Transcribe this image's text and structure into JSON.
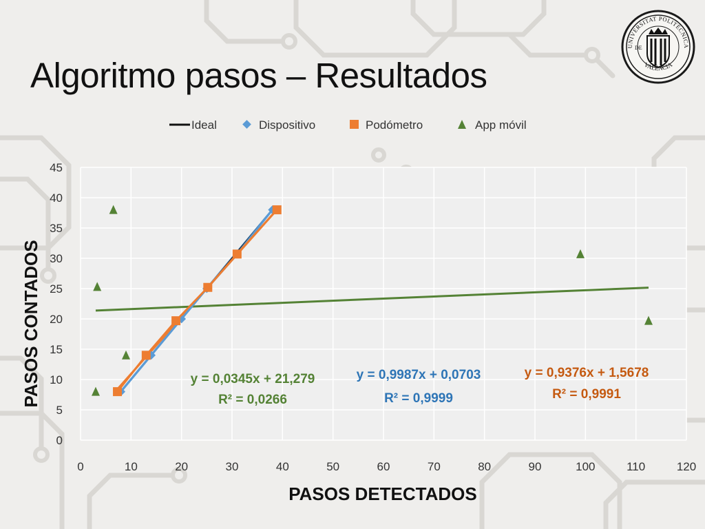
{
  "slide": {
    "title": "Algoritmo pasos – Resultados",
    "logo_text": [
      "UNIVERSITAT POLITÈCNICA",
      "DE",
      "VALÈNCIA"
    ]
  },
  "colors": {
    "ideal": "#111111",
    "dispositivo": "#5b9bd5",
    "podometro": "#ed7d31",
    "app": "#548235",
    "dispositivo_eq": "#2e75b6",
    "podometro_eq": "#c55a11",
    "app_eq": "#548235"
  },
  "chart_data": {
    "type": "scatter",
    "title": "",
    "xlabel": "PASOS DETECTADOS",
    "ylabel": "PASOS CONTADOS",
    "xlim": [
      0,
      120
    ],
    "ylim": [
      0,
      45
    ],
    "xticks": [
      0,
      10,
      20,
      30,
      40,
      50,
      60,
      70,
      80,
      90,
      100,
      110,
      120
    ],
    "yticks": [
      0,
      5,
      10,
      15,
      20,
      25,
      30,
      35,
      40,
      45
    ],
    "grid": true,
    "legend_position": "top",
    "series": [
      {
        "name": "Ideal",
        "marker": "line",
        "x": [
          8,
          38
        ],
        "y": [
          8,
          38
        ]
      },
      {
        "name": "Dispositivo",
        "marker": "diamond",
        "x": [
          8,
          14,
          20,
          25,
          31,
          38
        ],
        "y": [
          8,
          14,
          20,
          25,
          30.7,
          38
        ],
        "trendline": {
          "slope": 0.9987,
          "intercept": 0.0703,
          "equation": "y = 0,9987x + 0,0703",
          "r2": "R² = 0,9999"
        }
      },
      {
        "name": "Podómetro",
        "marker": "square",
        "x": [
          7.3,
          13,
          18.9,
          25.2,
          31,
          38.9
        ],
        "y": [
          8,
          14,
          19.7,
          25.2,
          30.7,
          38
        ],
        "trendline": {
          "slope": 0.9376,
          "intercept": 1.5678,
          "equation": "y = 0,9376x + 1,5678",
          "r2": "R² = 0,9991"
        }
      },
      {
        "name": "App móvil",
        "marker": "triangle",
        "x": [
          3,
          3.3,
          6.5,
          9,
          99,
          112.5
        ],
        "y": [
          8,
          25.3,
          38,
          14,
          30.7,
          19.7
        ],
        "trendline": {
          "slope": 0.0345,
          "intercept": 21.279,
          "equation": "y = 0,0345x + 21,279",
          "r2": "R² = 0,0266"
        }
      }
    ]
  }
}
